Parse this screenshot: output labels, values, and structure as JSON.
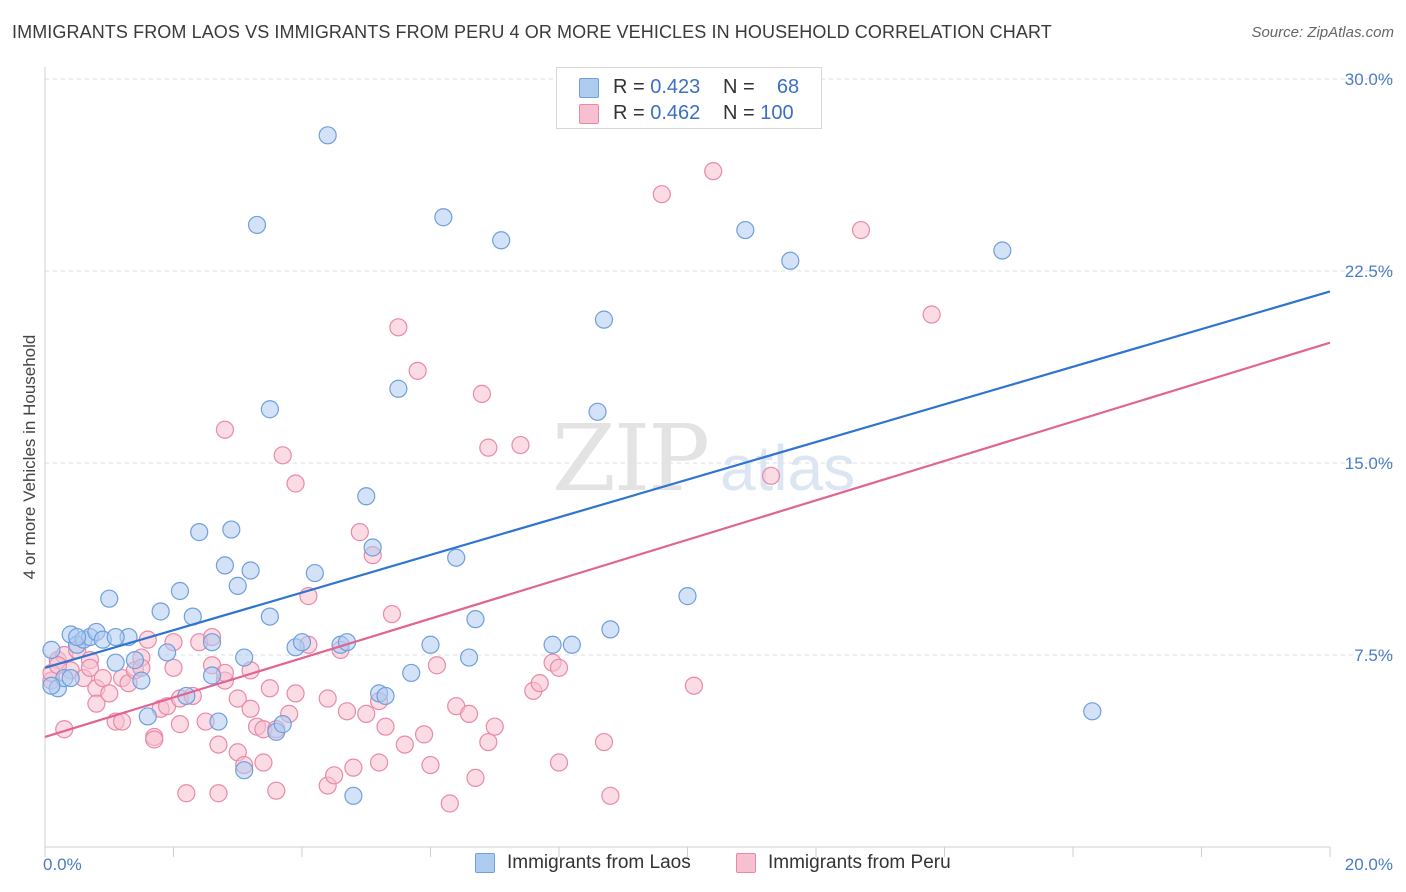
{
  "title": "IMMIGRANTS FROM LAOS VS IMMIGRANTS FROM PERU 4 OR MORE VEHICLES IN HOUSEHOLD CORRELATION CHART",
  "source": "Source: ZipAtlas.com",
  "colors": {
    "laos_fill": "#aecbf0",
    "laos_stroke": "#6f9fdc",
    "laos_line": "#2f74d0",
    "peru_fill": "#f7c0d0",
    "peru_stroke": "#e88aa7",
    "peru_line": "#e06592",
    "tick_text": "#4a7cc7",
    "grid": "#dcdcdc"
  },
  "legend": {
    "rows": [
      {
        "r_label": "R =",
        "r_value": "0.423",
        "n_label": "N =",
        "n_value": "68"
      },
      {
        "r_label": "R =",
        "r_value": "0.462",
        "n_label": "N =",
        "n_value": "100"
      }
    ]
  },
  "bottom_legend": [
    "Immigrants from Laos",
    "Immigrants from Peru"
  ],
  "watermark": {
    "zip": "ZIP",
    "atlas": "atlas"
  },
  "chart_data": {
    "type": "scatter",
    "title": "IMMIGRANTS FROM LAOS VS IMMIGRANTS FROM PERU 4 OR MORE VEHICLES IN HOUSEHOLD CORRELATION CHART",
    "xlabel": "",
    "ylabel": "4 or more Vehicles in Household",
    "xlim": [
      0,
      20
    ],
    "ylim": [
      0,
      30
    ],
    "x_tick_labels": [
      "0.0%",
      "20.0%"
    ],
    "y_ticks": [
      7.5,
      15.0,
      22.5,
      30.0
    ],
    "y_tick_labels": [
      "7.5%",
      "15.0%",
      "22.5%",
      "30.0%"
    ],
    "grid": true,
    "series": [
      {
        "name": "Immigrants from Laos",
        "R": 0.423,
        "N": 68,
        "trend": {
          "x0": 0,
          "y0": 7.0,
          "x1": 20,
          "y1": 21.7
        },
        "points": [
          [
            0.1,
            7.7
          ],
          [
            0.2,
            6.2
          ],
          [
            0.3,
            6.6
          ],
          [
            0.4,
            8.3
          ],
          [
            0.5,
            7.9
          ],
          [
            0.6,
            8.1
          ],
          [
            0.7,
            8.2
          ],
          [
            0.8,
            8.4
          ],
          [
            0.9,
            8.1
          ],
          [
            1.0,
            9.7
          ],
          [
            1.3,
            8.2
          ],
          [
            1.4,
            7.3
          ],
          [
            1.5,
            6.5
          ],
          [
            1.6,
            5.1
          ],
          [
            1.8,
            9.2
          ],
          [
            1.9,
            7.6
          ],
          [
            2.1,
            10.0
          ],
          [
            2.2,
            5.9
          ],
          [
            2.3,
            9.0
          ],
          [
            2.4,
            12.3
          ],
          [
            2.6,
            6.7
          ],
          [
            2.6,
            8.0
          ],
          [
            2.7,
            4.9
          ],
          [
            2.8,
            11.0
          ],
          [
            2.9,
            12.4
          ],
          [
            3.0,
            10.2
          ],
          [
            3.1,
            7.4
          ],
          [
            3.1,
            3.0
          ],
          [
            3.2,
            10.8
          ],
          [
            3.3,
            24.3
          ],
          [
            3.5,
            17.1
          ],
          [
            3.5,
            9.0
          ],
          [
            3.6,
            4.5
          ],
          [
            3.7,
            4.8
          ],
          [
            3.9,
            7.8
          ],
          [
            4.0,
            8.0
          ],
          [
            4.2,
            10.7
          ],
          [
            4.4,
            27.8
          ],
          [
            4.6,
            7.9
          ],
          [
            4.7,
            8.0
          ],
          [
            4.8,
            2.0
          ],
          [
            5.0,
            13.7
          ],
          [
            5.1,
            11.7
          ],
          [
            5.2,
            6.0
          ],
          [
            5.3,
            5.9
          ],
          [
            5.5,
            17.9
          ],
          [
            5.7,
            6.8
          ],
          [
            6.0,
            7.9
          ],
          [
            6.2,
            24.6
          ],
          [
            6.4,
            11.3
          ],
          [
            6.6,
            7.4
          ],
          [
            6.7,
            8.9
          ],
          [
            7.1,
            23.7
          ],
          [
            7.9,
            7.9
          ],
          [
            8.2,
            7.9
          ],
          [
            8.6,
            17.0
          ],
          [
            8.7,
            20.6
          ],
          [
            8.8,
            8.5
          ],
          [
            10.0,
            9.8
          ],
          [
            10.9,
            24.1
          ],
          [
            11.6,
            22.9
          ],
          [
            14.9,
            23.3
          ],
          [
            16.3,
            5.3
          ],
          [
            0.1,
            6.3
          ],
          [
            0.4,
            6.6
          ],
          [
            1.1,
            8.2
          ],
          [
            0.5,
            8.2
          ],
          [
            1.1,
            7.2
          ]
        ]
      },
      {
        "name": "Immigrants from Peru",
        "R": 0.462,
        "N": 100,
        "trend": {
          "x0": 0,
          "y0": 4.3,
          "x1": 20,
          "y1": 19.7
        },
        "points": [
          [
            0.1,
            6.5
          ],
          [
            0.2,
            7.3
          ],
          [
            0.3,
            7.5
          ],
          [
            0.3,
            4.6
          ],
          [
            0.4,
            6.9
          ],
          [
            0.5,
            7.7
          ],
          [
            0.6,
            6.6
          ],
          [
            0.7,
            7.3
          ],
          [
            0.7,
            7.0
          ],
          [
            0.8,
            6.2
          ],
          [
            0.8,
            5.6
          ],
          [
            0.9,
            6.6
          ],
          [
            1.0,
            6.0
          ],
          [
            1.1,
            4.9
          ],
          [
            1.2,
            6.6
          ],
          [
            1.2,
            4.9
          ],
          [
            1.3,
            6.4
          ],
          [
            1.4,
            6.9
          ],
          [
            1.5,
            7.4
          ],
          [
            1.5,
            7.0
          ],
          [
            1.6,
            8.1
          ],
          [
            1.7,
            4.3
          ],
          [
            1.7,
            4.2
          ],
          [
            1.8,
            5.4
          ],
          [
            1.9,
            5.5
          ],
          [
            2.0,
            8.0
          ],
          [
            2.0,
            7.0
          ],
          [
            2.1,
            5.8
          ],
          [
            2.1,
            4.8
          ],
          [
            2.2,
            2.1
          ],
          [
            2.3,
            5.9
          ],
          [
            2.4,
            8.0
          ],
          [
            2.5,
            4.9
          ],
          [
            2.6,
            8.2
          ],
          [
            2.6,
            7.1
          ],
          [
            2.7,
            4.0
          ],
          [
            2.7,
            2.1
          ],
          [
            2.8,
            6.5
          ],
          [
            2.8,
            6.8
          ],
          [
            2.8,
            16.3
          ],
          [
            3.0,
            3.7
          ],
          [
            3.0,
            5.8
          ],
          [
            3.1,
            3.2
          ],
          [
            3.2,
            6.9
          ],
          [
            3.2,
            5.4
          ],
          [
            3.3,
            4.7
          ],
          [
            3.4,
            3.3
          ],
          [
            3.4,
            4.6
          ],
          [
            3.5,
            6.2
          ],
          [
            3.6,
            4.6
          ],
          [
            3.6,
            2.2
          ],
          [
            3.7,
            15.3
          ],
          [
            3.8,
            5.2
          ],
          [
            3.9,
            6.0
          ],
          [
            3.9,
            14.2
          ],
          [
            4.1,
            7.9
          ],
          [
            4.1,
            9.8
          ],
          [
            4.4,
            2.4
          ],
          [
            4.4,
            5.8
          ],
          [
            4.5,
            2.8
          ],
          [
            4.6,
            7.7
          ],
          [
            4.7,
            5.3
          ],
          [
            4.8,
            3.1
          ],
          [
            4.9,
            12.3
          ],
          [
            5.0,
            5.2
          ],
          [
            5.1,
            11.4
          ],
          [
            5.2,
            3.3
          ],
          [
            5.2,
            5.7
          ],
          [
            5.3,
            4.7
          ],
          [
            5.4,
            9.1
          ],
          [
            5.5,
            20.3
          ],
          [
            5.6,
            4.0
          ],
          [
            5.8,
            18.6
          ],
          [
            5.9,
            4.4
          ],
          [
            6.0,
            3.2
          ],
          [
            6.1,
            7.1
          ],
          [
            6.3,
            1.7
          ],
          [
            6.4,
            5.5
          ],
          [
            6.6,
            5.2
          ],
          [
            6.7,
            2.7
          ],
          [
            6.8,
            17.7
          ],
          [
            6.9,
            4.1
          ],
          [
            6.9,
            15.6
          ],
          [
            7.0,
            4.7
          ],
          [
            7.4,
            15.7
          ],
          [
            7.6,
            6.1
          ],
          [
            7.7,
            6.4
          ],
          [
            7.9,
            7.2
          ],
          [
            8.0,
            7.0
          ],
          [
            8.0,
            3.3
          ],
          [
            8.7,
            4.1
          ],
          [
            8.8,
            2.0
          ],
          [
            9.6,
            25.5
          ],
          [
            10.1,
            6.3
          ],
          [
            10.4,
            26.4
          ],
          [
            11.3,
            14.5
          ],
          [
            12.7,
            24.1
          ],
          [
            13.8,
            20.8
          ],
          [
            0.1,
            6.8
          ],
          [
            0.2,
            7.1
          ]
        ]
      }
    ]
  }
}
